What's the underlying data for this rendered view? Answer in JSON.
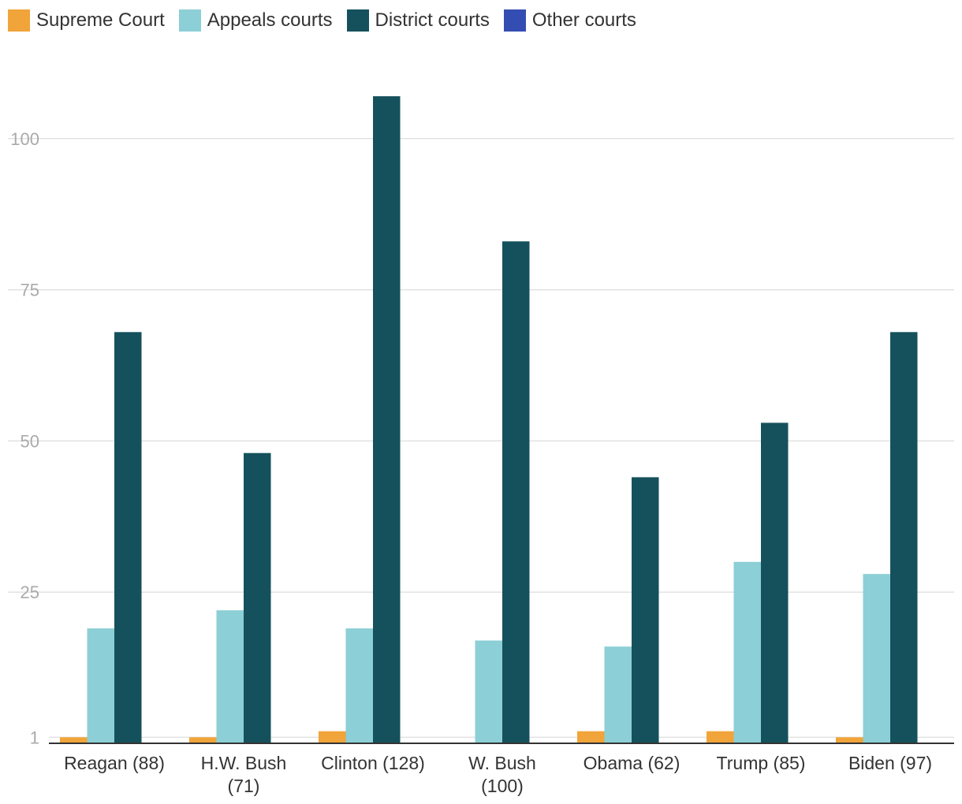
{
  "colors": {
    "supreme": "#f0a43a",
    "appeals": "#8ccfd6",
    "district": "#15515c",
    "other": "#344db3",
    "grid": "#e2e2e2",
    "axis": "#333333",
    "tick": "#aaaaaa",
    "label": "#333333"
  },
  "legend": [
    {
      "label": "Supreme Court",
      "color": "#f0a43a"
    },
    {
      "label": "Appeals courts",
      "color": "#8ccfd6"
    },
    {
      "label": "District courts",
      "color": "#15515c"
    },
    {
      "label": "Other courts",
      "color": "#344db3"
    }
  ],
  "chart_data": {
    "type": "bar",
    "categories": [
      "Reagan (88)",
      "H.W. Bush (71)",
      "Clinton (128)",
      "W. Bush (100)",
      "Obama (62)",
      "Trump (85)",
      "Biden (97)"
    ],
    "category_lines": [
      [
        "Reagan (88)"
      ],
      [
        "H.W. Bush",
        "(71)"
      ],
      [
        "Clinton (128)"
      ],
      [
        "W. Bush",
        "(100)"
      ],
      [
        "Obama (62)"
      ],
      [
        "Trump (85)"
      ],
      [
        "Biden (97)"
      ]
    ],
    "series": [
      {
        "name": "Supreme Court",
        "values": [
          1,
          1,
          2,
          0,
          2,
          2,
          1
        ]
      },
      {
        "name": "Appeals courts",
        "values": [
          19,
          22,
          19,
          17,
          16,
          30,
          28
        ]
      },
      {
        "name": "District courts",
        "values": [
          68,
          48,
          107,
          83,
          44,
          53,
          68
        ]
      },
      {
        "name": "Other courts",
        "values": [
          0,
          0,
          0,
          0,
          0,
          0,
          0
        ]
      }
    ],
    "yticks": [
      1,
      25,
      50,
      75,
      100
    ],
    "ylim": [
      0,
      110
    ],
    "grid": true,
    "legend_position": "top-left",
    "title": "",
    "xlabel": "",
    "ylabel": ""
  }
}
